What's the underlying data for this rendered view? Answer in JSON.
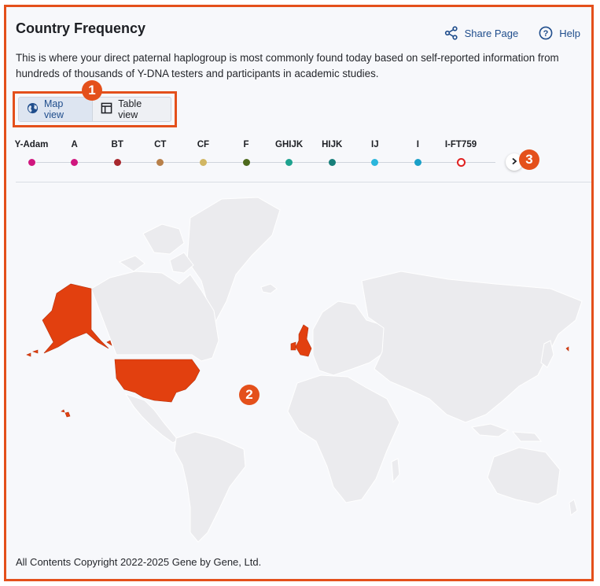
{
  "header": {
    "title": "Country Frequency",
    "share_label": "Share Page",
    "help_label": "Help"
  },
  "description": "This is where your direct paternal haplogroup is most commonly found today based on self-reported information from hundreds of thousands of Y-DNA testers and participants in academic studies.",
  "view_toggle": {
    "map_label": "Map view",
    "table_label": "Table view",
    "selected": "Map view"
  },
  "annotations": [
    "1",
    "2",
    "3"
  ],
  "timeline": {
    "nodes": [
      {
        "label": "Y-Adam",
        "color": "#d0177f"
      },
      {
        "label": "A",
        "color": "#d0177f"
      },
      {
        "label": "BT",
        "color": "#a8282e"
      },
      {
        "label": "CT",
        "color": "#b8804a"
      },
      {
        "label": "CF",
        "color": "#d1b663"
      },
      {
        "label": "F",
        "color": "#4d6a1d"
      },
      {
        "label": "GHIJK",
        "color": "#1ea28f"
      },
      {
        "label": "HIJK",
        "color": "#177f7a"
      },
      {
        "label": "IJ",
        "color": "#2bb6dc"
      },
      {
        "label": "I",
        "color": "#1aa0c8"
      },
      {
        "label": "I-FT759",
        "color": "#e02020",
        "current": true
      }
    ]
  },
  "map": {
    "land_color": "#ebebee",
    "border_color": "#ffffff",
    "highlight_color": "#e2400f",
    "highlight_dark_color": "#b8300b",
    "highlighted_countries": [
      "United States",
      "United Kingdom"
    ]
  },
  "footer": "All Contents Copyright 2022-2025 Gene by Gene, Ltd."
}
